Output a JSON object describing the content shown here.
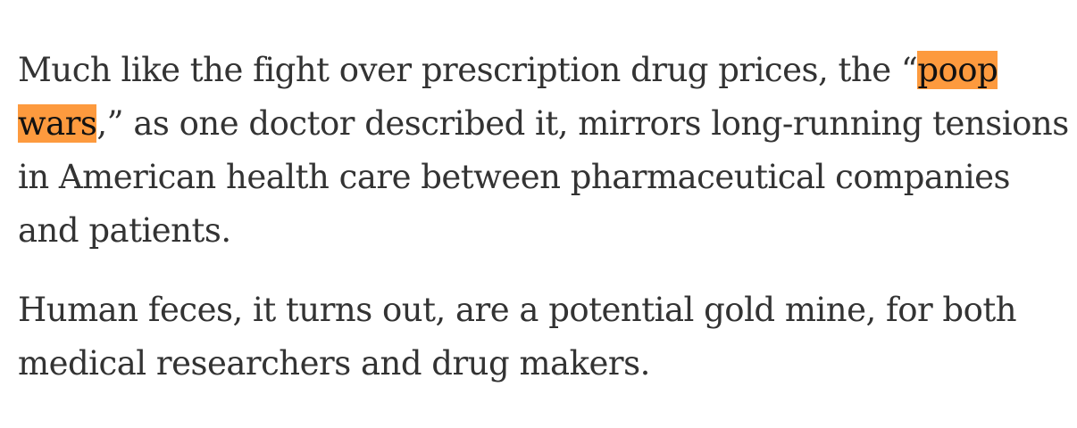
{
  "article": {
    "paragraph_1": {
      "before": "Much like the fight over prescription drug prices, the “",
      "highlight": "poop wars",
      "after": ",” as one doctor described it, mirrors long-running tensions in American health care between pharmaceutical companies and patients."
    },
    "paragraph_2": "Human feces, it turns out, are a potential gold mine, for both medical researchers and drug makers."
  },
  "colors": {
    "text": "#333333",
    "highlight": "#fd9a3e"
  }
}
